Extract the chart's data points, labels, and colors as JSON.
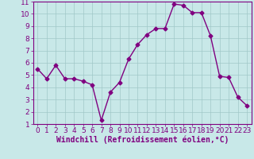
{
  "x": [
    0,
    1,
    2,
    3,
    4,
    5,
    6,
    7,
    8,
    9,
    10,
    11,
    12,
    13,
    14,
    15,
    16,
    17,
    18,
    19,
    20,
    21,
    22,
    23
  ],
  "y": [
    5.5,
    4.7,
    5.8,
    4.7,
    4.7,
    4.5,
    4.2,
    1.3,
    3.6,
    4.4,
    6.3,
    7.5,
    8.3,
    8.8,
    8.8,
    10.8,
    10.7,
    10.1,
    10.1,
    8.2,
    4.9,
    4.8,
    3.2,
    2.5
  ],
  "line_color": "#800080",
  "marker": "D",
  "marker_size": 2.5,
  "bg_color": "#c8e8e8",
  "grid_color": "#a0c8c8",
  "xlabel": "Windchill (Refroidissement éolien,°C)",
  "xlabel_color": "#800080",
  "tick_color": "#800080",
  "ylim": [
    1,
    11
  ],
  "xlim": [
    -0.5,
    23.5
  ],
  "yticks": [
    1,
    2,
    3,
    4,
    5,
    6,
    7,
    8,
    9,
    10,
    11
  ],
  "xticks": [
    0,
    1,
    2,
    3,
    4,
    5,
    6,
    7,
    8,
    9,
    10,
    11,
    12,
    13,
    14,
    15,
    16,
    17,
    18,
    19,
    20,
    21,
    22,
    23
  ],
  "font_size": 6.5,
  "xlabel_fontsize": 7,
  "line_width": 1.0
}
